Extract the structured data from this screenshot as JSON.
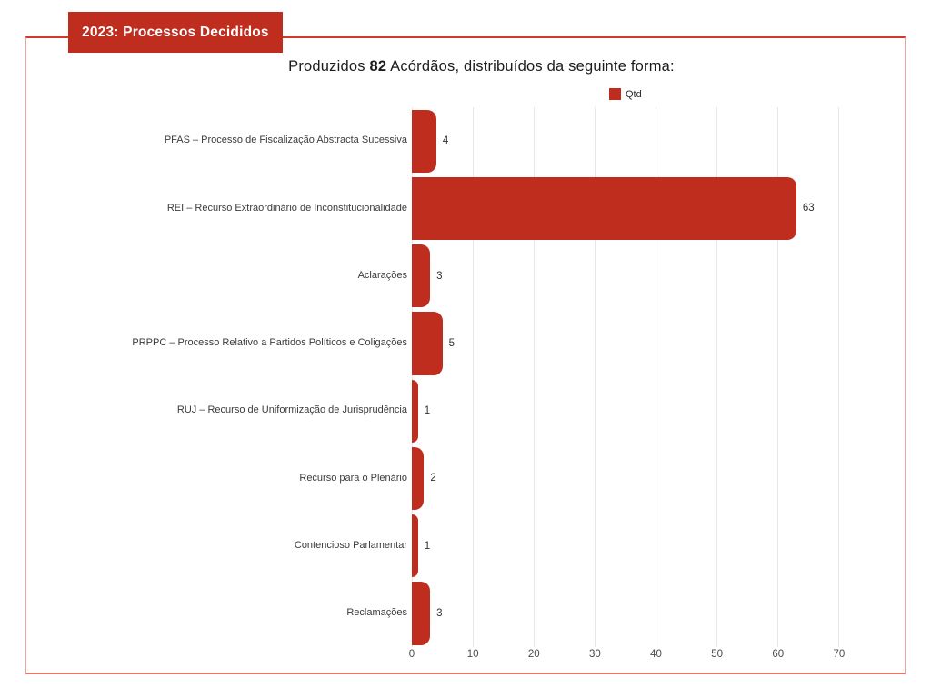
{
  "banner": {
    "title": "2023: Processos Decididos"
  },
  "subtitle": {
    "prefix": "Produzidos ",
    "count": "82",
    "suffix": " Acórdãos, distribuídos da seguinte forma:"
  },
  "legend": {
    "label": "Qtd"
  },
  "colors": {
    "accent": "#bf2d1f",
    "accent_border": "#d03b29",
    "grid": "#e7e7e7"
  },
  "chart_data": {
    "type": "bar",
    "orientation": "horizontal",
    "title": "2023: Processos Decididos",
    "subtitle": "Produzidos 82 Acórdãos, distribuídos da seguinte forma:",
    "categories": [
      "PFAS – Processo de Fiscalização Abstracta Sucessiva",
      "REI – Recurso Extraordinário de Inconstitucionalidade",
      "Aclarações",
      "PRPPC – Processo Relativo a Partidos Políticos e Coligações",
      "RUJ – Recurso de Uniformização de Jurisprudência",
      "Recurso para o Plenário",
      "Contencioso Parlamentar",
      "Reclamações"
    ],
    "series": [
      {
        "name": "Qtd",
        "values": [
          4,
          63,
          3,
          5,
          1,
          2,
          1,
          3
        ]
      }
    ],
    "total": 82,
    "xlim": [
      0,
      80
    ],
    "xticks": [
      0,
      10,
      20,
      30,
      40,
      50,
      60,
      70
    ],
    "grid": "vertical",
    "legend_position": "top",
    "bar_color": "#bf2d1f",
    "value_labels": "outside-end"
  }
}
